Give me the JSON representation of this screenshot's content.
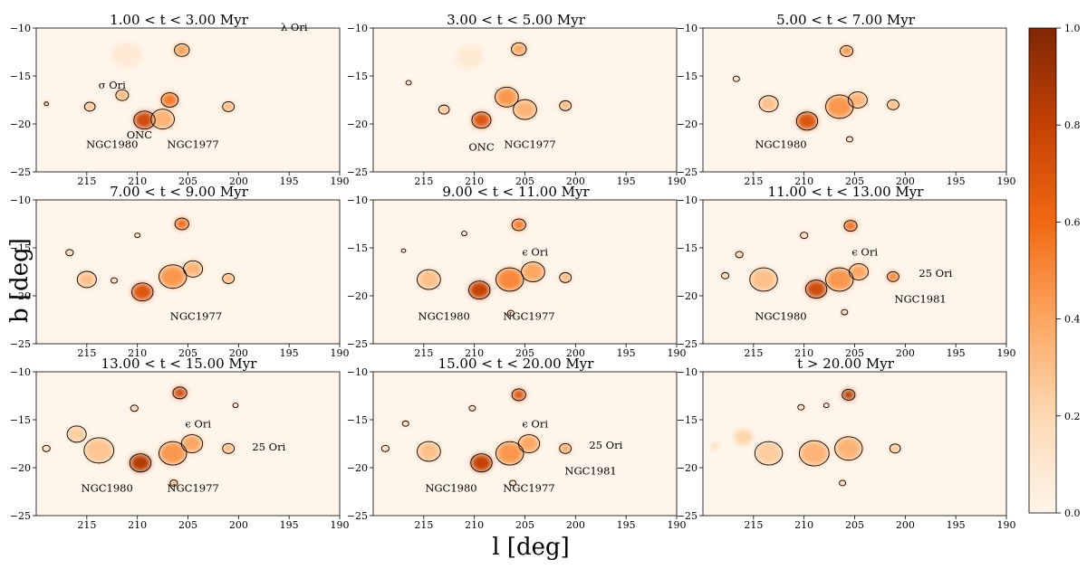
{
  "axes": {
    "xlabel": "l [deg]",
    "ylabel": "b [deg]"
  },
  "colorbar": {
    "ticks": [
      "0.0",
      "0.2",
      "0.4",
      "0.6",
      "0.8",
      "1.0"
    ],
    "range": [
      0.0,
      1.0
    ],
    "colors": [
      "#fff5eb",
      "#fdd9b3",
      "#fda660",
      "#f16913",
      "#c44103",
      "#7f2704"
    ]
  },
  "chart_data": {
    "type": "heatmap",
    "xlim": [
      220,
      190
    ],
    "ylim": [
      -25,
      -10
    ],
    "xticks": [
      215,
      210,
      205,
      200,
      195,
      190
    ],
    "xtick_labels": [
      "215",
      "210",
      "205",
      "200",
      "195",
      "190"
    ],
    "yticks": [
      -10,
      -15,
      -20,
      -25
    ],
    "ytick_labels": [
      "−10",
      "−15",
      "−20",
      "−25"
    ],
    "panels": [
      {
        "title": "1.00 < t < 3.00 Myr",
        "labels": [
          {
            "text": "λ Ori",
            "l": 194.5,
            "b": -10.3
          },
          {
            "text": "σ Ori",
            "l": 212.5,
            "b": -16.3
          },
          {
            "text": "NGC1980",
            "l": 212.5,
            "b": -22.5
          },
          {
            "text": "ONC",
            "l": 209.8,
            "b": -21.5
          },
          {
            "text": "NGC1977",
            "l": 204.5,
            "b": -22.5
          }
        ],
        "blobs": [
          {
            "l": 209.3,
            "b": -19.6,
            "v": 0.75,
            "s": 1.0
          },
          {
            "l": 206.8,
            "b": -17.5,
            "v": 0.55,
            "s": 0.8
          },
          {
            "l": 207.5,
            "b": -19.5,
            "v": 0.35,
            "s": 1.1
          },
          {
            "l": 205.6,
            "b": -12.3,
            "v": 0.42,
            "s": 0.7
          },
          {
            "l": 201.0,
            "b": -18.2,
            "v": 0.35,
            "s": 0.55
          },
          {
            "l": 214.7,
            "b": -18.2,
            "v": 0.3,
            "s": 0.5
          },
          {
            "l": 219.0,
            "b": -17.9,
            "v": 0.6,
            "s": 0.2
          },
          {
            "l": 211.5,
            "b": -17.0,
            "v": 0.35,
            "s": 0.6
          },
          {
            "l": 211.0,
            "b": -12.8,
            "v": 0.08,
            "s": 1.5
          }
        ]
      },
      {
        "title": "3.00 < t < 5.00 Myr",
        "labels": [
          {
            "text": "ONC",
            "l": 209.3,
            "b": -22.8
          },
          {
            "text": "NGC1977",
            "l": 204.5,
            "b": -22.5
          }
        ],
        "blobs": [
          {
            "l": 209.3,
            "b": -19.6,
            "v": 0.7,
            "s": 0.9
          },
          {
            "l": 206.8,
            "b": -17.2,
            "v": 0.45,
            "s": 1.1
          },
          {
            "l": 205.0,
            "b": -18.5,
            "v": 0.35,
            "s": 1.1
          },
          {
            "l": 205.6,
            "b": -12.2,
            "v": 0.4,
            "s": 0.7
          },
          {
            "l": 201.0,
            "b": -18.1,
            "v": 0.35,
            "s": 0.55
          },
          {
            "l": 213.0,
            "b": -18.5,
            "v": 0.3,
            "s": 0.5
          },
          {
            "l": 216.5,
            "b": -15.7,
            "v": 0.35,
            "s": 0.25
          },
          {
            "l": 210.5,
            "b": -13.0,
            "v": 0.08,
            "s": 1.4
          }
        ]
      },
      {
        "title": "5.00 < t < 7.00 Myr",
        "labels": [
          {
            "text": "NGC1980",
            "l": 212.3,
            "b": -22.5
          }
        ],
        "blobs": [
          {
            "l": 209.7,
            "b": -19.7,
            "v": 0.7,
            "s": 1.0
          },
          {
            "l": 206.5,
            "b": -18.2,
            "v": 0.45,
            "s": 1.3
          },
          {
            "l": 204.7,
            "b": -17.5,
            "v": 0.35,
            "s": 0.9
          },
          {
            "l": 213.5,
            "b": -17.9,
            "v": 0.3,
            "s": 0.9
          },
          {
            "l": 205.8,
            "b": -12.4,
            "v": 0.45,
            "s": 0.6
          },
          {
            "l": 201.2,
            "b": -18.0,
            "v": 0.35,
            "s": 0.55
          },
          {
            "l": 216.7,
            "b": -15.3,
            "v": 0.3,
            "s": 0.3
          },
          {
            "l": 205.5,
            "b": -21.6,
            "v": 0.3,
            "s": 0.3
          }
        ]
      },
      {
        "title": "7.00 < t < 9.00 Myr",
        "labels": [
          {
            "text": "NGC1977",
            "l": 204.2,
            "b": -22.5
          }
        ],
        "blobs": [
          {
            "l": 209.5,
            "b": -19.6,
            "v": 0.7,
            "s": 1.0
          },
          {
            "l": 206.5,
            "b": -18.0,
            "v": 0.45,
            "s": 1.3
          },
          {
            "l": 204.5,
            "b": -17.2,
            "v": 0.35,
            "s": 0.9
          },
          {
            "l": 215.0,
            "b": -18.3,
            "v": 0.3,
            "s": 0.9
          },
          {
            "l": 205.6,
            "b": -12.5,
            "v": 0.6,
            "s": 0.65
          },
          {
            "l": 201.0,
            "b": -18.2,
            "v": 0.35,
            "s": 0.55
          },
          {
            "l": 216.7,
            "b": -15.5,
            "v": 0.3,
            "s": 0.35
          },
          {
            "l": 212.3,
            "b": -18.4,
            "v": 0.3,
            "s": 0.3
          },
          {
            "l": 210.0,
            "b": -13.7,
            "v": 0.35,
            "s": 0.25
          }
        ]
      },
      {
        "title": "9.00 < t < 11.00 Myr",
        "labels": [
          {
            "text": "ϵ Ori",
            "l": 204.0,
            "b": -15.8
          },
          {
            "text": "NGC1980",
            "l": 213.0,
            "b": -22.5
          },
          {
            "text": "NGC1977",
            "l": 204.6,
            "b": -22.5
          }
        ],
        "blobs": [
          {
            "l": 209.5,
            "b": -19.4,
            "v": 0.8,
            "s": 1.0
          },
          {
            "l": 206.5,
            "b": -18.3,
            "v": 0.5,
            "s": 1.3
          },
          {
            "l": 204.2,
            "b": -17.5,
            "v": 0.4,
            "s": 1.1
          },
          {
            "l": 214.5,
            "b": -18.3,
            "v": 0.3,
            "s": 1.1
          },
          {
            "l": 205.6,
            "b": -12.6,
            "v": 0.55,
            "s": 0.65
          },
          {
            "l": 201.0,
            "b": -18.1,
            "v": 0.35,
            "s": 0.55
          },
          {
            "l": 206.4,
            "b": -21.8,
            "v": 0.3,
            "s": 0.3
          },
          {
            "l": 217.0,
            "b": -15.3,
            "v": 0.3,
            "s": 0.2
          },
          {
            "l": 211.0,
            "b": -13.5,
            "v": 0.3,
            "s": 0.25
          }
        ]
      },
      {
        "title": "11.00 < t < 13.00 Myr",
        "labels": [
          {
            "text": "ϵ Ori",
            "l": 204.0,
            "b": -15.8
          },
          {
            "text": "25 Ori",
            "l": 197.0,
            "b": -18.0
          },
          {
            "text": "NGC1981",
            "l": 198.5,
            "b": -20.7
          },
          {
            "text": "NGC1980",
            "l": 212.3,
            "b": -22.5
          }
        ],
        "blobs": [
          {
            "l": 208.8,
            "b": -19.3,
            "v": 0.75,
            "s": 1.0
          },
          {
            "l": 206.5,
            "b": -18.3,
            "v": 0.45,
            "s": 1.3
          },
          {
            "l": 204.6,
            "b": -17.5,
            "v": 0.4,
            "s": 0.9
          },
          {
            "l": 214.0,
            "b": -18.3,
            "v": 0.3,
            "s": 1.3
          },
          {
            "l": 205.4,
            "b": -12.7,
            "v": 0.6,
            "s": 0.6
          },
          {
            "l": 201.2,
            "b": -18.0,
            "v": 0.55,
            "s": 0.55
          },
          {
            "l": 217.8,
            "b": -17.9,
            "v": 0.3,
            "s": 0.35
          },
          {
            "l": 216.4,
            "b": -15.7,
            "v": 0.3,
            "s": 0.35
          },
          {
            "l": 210.0,
            "b": -13.7,
            "v": 0.3,
            "s": 0.35
          },
          {
            "l": 206.0,
            "b": -21.7,
            "v": 0.3,
            "s": 0.3
          }
        ]
      },
      {
        "title": "13.00 < t < 15.00 Myr",
        "labels": [
          {
            "text": "ϵ Ori",
            "l": 204.0,
            "b": -15.8
          },
          {
            "text": "25 Ori",
            "l": 197.0,
            "b": -18.2
          },
          {
            "text": "NGC1980",
            "l": 213.0,
            "b": -22.5
          },
          {
            "text": "NGC1977",
            "l": 204.5,
            "b": -22.5
          }
        ],
        "blobs": [
          {
            "l": 209.7,
            "b": -19.5,
            "v": 0.85,
            "s": 1.0
          },
          {
            "l": 206.5,
            "b": -18.5,
            "v": 0.45,
            "s": 1.3
          },
          {
            "l": 204.6,
            "b": -17.5,
            "v": 0.4,
            "s": 1.0
          },
          {
            "l": 213.8,
            "b": -18.2,
            "v": 0.28,
            "s": 1.4
          },
          {
            "l": 216.0,
            "b": -16.5,
            "v": 0.25,
            "s": 0.9
          },
          {
            "l": 205.8,
            "b": -12.2,
            "v": 0.75,
            "s": 0.65
          },
          {
            "l": 201.0,
            "b": -18.0,
            "v": 0.35,
            "s": 0.55
          },
          {
            "l": 206.4,
            "b": -21.6,
            "v": 0.45,
            "s": 0.35
          },
          {
            "l": 219.0,
            "b": -18.0,
            "v": 0.25,
            "s": 0.35
          },
          {
            "l": 210.3,
            "b": -13.8,
            "v": 0.3,
            "s": 0.35
          },
          {
            "l": 200.3,
            "b": -13.5,
            "v": 0.3,
            "s": 0.25
          }
        ]
      },
      {
        "title": "15.00 < t < 20.00 Myr",
        "labels": [
          {
            "text": "ϵ Ori",
            "l": 204.0,
            "b": -15.8
          },
          {
            "text": "25 Ori",
            "l": 197.0,
            "b": -18.0
          },
          {
            "text": "NGC1981",
            "l": 198.5,
            "b": -20.7
          },
          {
            "text": "NGC1980",
            "l": 212.3,
            "b": -22.5
          },
          {
            "text": "NGC1977",
            "l": 204.6,
            "b": -22.5
          }
        ],
        "blobs": [
          {
            "l": 209.3,
            "b": -19.5,
            "v": 0.8,
            "s": 1.0
          },
          {
            "l": 206.5,
            "b": -18.5,
            "v": 0.45,
            "s": 1.3
          },
          {
            "l": 204.6,
            "b": -17.5,
            "v": 0.4,
            "s": 1.0
          },
          {
            "l": 214.5,
            "b": -18.3,
            "v": 0.3,
            "s": 1.1
          },
          {
            "l": 205.6,
            "b": -12.4,
            "v": 0.7,
            "s": 0.65
          },
          {
            "l": 201.0,
            "b": -18.0,
            "v": 0.4,
            "s": 0.55
          },
          {
            "l": 206.2,
            "b": -21.6,
            "v": 0.3,
            "s": 0.3
          },
          {
            "l": 216.8,
            "b": -15.4,
            "v": 0.3,
            "s": 0.3
          },
          {
            "l": 218.8,
            "b": -18.0,
            "v": 0.25,
            "s": 0.35
          },
          {
            "l": 210.2,
            "b": -13.8,
            "v": 0.3,
            "s": 0.3
          }
        ]
      },
      {
        "title": "t > 20.00 Myr",
        "labels": [],
        "blobs": [
          {
            "l": 209.0,
            "b": -18.5,
            "v": 0.35,
            "s": 1.4
          },
          {
            "l": 205.6,
            "b": -18.0,
            "v": 0.35,
            "s": 1.3
          },
          {
            "l": 213.5,
            "b": -18.5,
            "v": 0.25,
            "s": 1.3
          },
          {
            "l": 216.0,
            "b": -16.8,
            "v": 0.22,
            "s": 0.9
          },
          {
            "l": 205.6,
            "b": -12.4,
            "v": 0.85,
            "s": 0.6
          },
          {
            "l": 201.0,
            "b": -18.0,
            "v": 0.3,
            "s": 0.5
          },
          {
            "l": 206.2,
            "b": -21.6,
            "v": 0.3,
            "s": 0.3
          },
          {
            "l": 218.8,
            "b": -17.8,
            "v": 0.22,
            "s": 0.35
          },
          {
            "l": 210.3,
            "b": -13.7,
            "v": 0.3,
            "s": 0.3
          },
          {
            "l": 207.8,
            "b": -13.5,
            "v": 0.3,
            "s": 0.25
          }
        ]
      }
    ]
  }
}
